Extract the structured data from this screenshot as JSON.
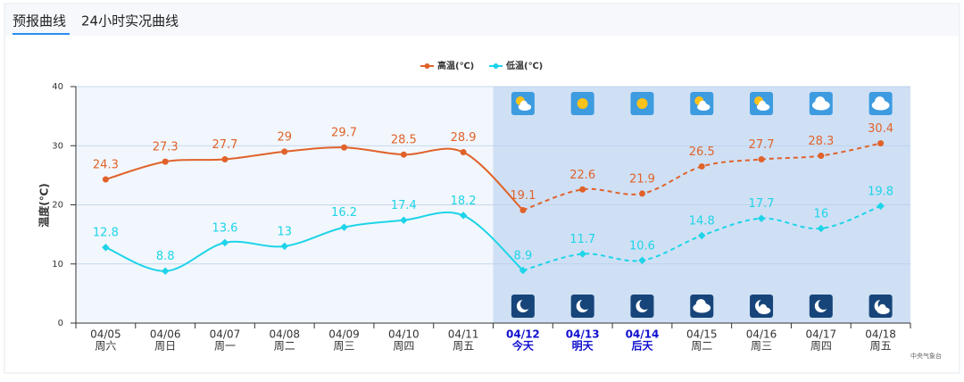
{
  "tabs": [
    "预报曲线",
    "24小时实况曲线"
  ],
  "chart_data": {
    "type": "line",
    "y_label": "温度(℃)",
    "categories": [
      "04/05",
      "04/06",
      "04/07",
      "04/08",
      "04/09",
      "04/10",
      "04/11",
      "04/12",
      "04/13",
      "04/14",
      "04/15",
      "04/16",
      "04/17",
      "04/18"
    ],
    "category_sublabels": [
      "周六",
      "周日",
      "周一",
      "周二",
      "周三",
      "周四",
      "周五",
      "今天",
      "明天",
      "后天",
      "周二",
      "周三",
      "周四",
      "周五"
    ],
    "highlight_indices": [
      7,
      8,
      9
    ],
    "forecast_start_index": 7,
    "series": [
      {
        "name": "高温(℃)",
        "color": "#e0622a",
        "values": [
          24.3,
          27.3,
          27.7,
          29,
          29.7,
          28.5,
          28.9,
          19.1,
          22.6,
          21.9,
          26.5,
          27.7,
          28.3,
          30.4
        ]
      },
      {
        "name": "低温(℃)",
        "color": "#1ed4e8",
        "values": [
          12.8,
          8.8,
          13.6,
          13,
          16.2,
          17.4,
          18.2,
          8.9,
          11.7,
          10.6,
          14.8,
          17.7,
          16,
          19.8
        ]
      }
    ],
    "ylim": [
      0,
      40
    ],
    "yticks": [
      0,
      10,
      20,
      30,
      40
    ],
    "grid": true
  },
  "source": "中央气象台"
}
